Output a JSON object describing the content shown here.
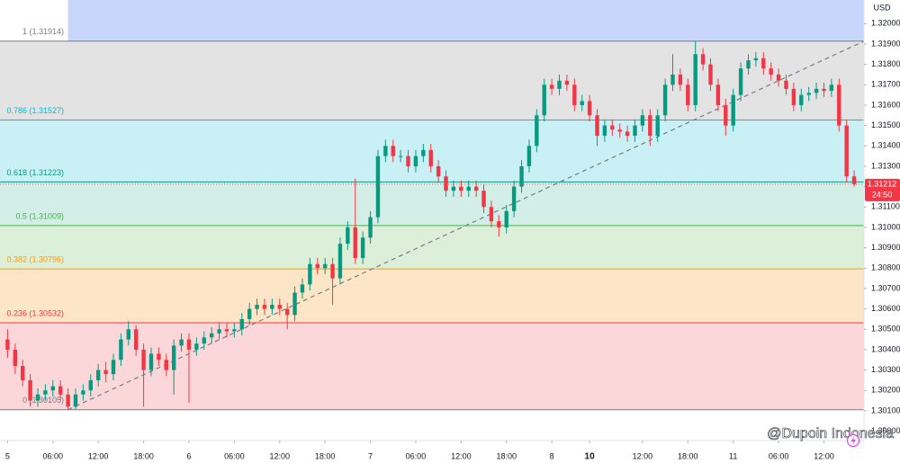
{
  "chart_data": {
    "type": "candlestick",
    "currency": "USD",
    "last_price": 1.31212,
    "countdown": "24:50",
    "watermark": "@Dupoin Indonesia",
    "up_color": "#089981",
    "down_color": "#f23645",
    "xlim": [
      -1,
      113.3
    ],
    "ylim": [
      1.29954,
      1.32116
    ],
    "xticks": [
      {
        "value": 0,
        "label": "5"
      },
      {
        "value": 6,
        "label": "06:00"
      },
      {
        "value": 12,
        "label": "12:00"
      },
      {
        "value": 18,
        "label": "18:00"
      },
      {
        "value": 24,
        "label": "6"
      },
      {
        "value": 30,
        "label": "06:00"
      },
      {
        "value": 36,
        "label": "12:00"
      },
      {
        "value": 42,
        "label": "18:00"
      },
      {
        "value": 48,
        "label": "7"
      },
      {
        "value": 54,
        "label": "06:00"
      },
      {
        "value": 60,
        "label": "12:00"
      },
      {
        "value": 66,
        "label": "18:00"
      },
      {
        "value": 72,
        "label": "8"
      },
      {
        "value": 77,
        "label": "10",
        "bold": true
      },
      {
        "value": 84,
        "label": "12:00"
      },
      {
        "value": 90,
        "label": "18:00"
      },
      {
        "value": 96,
        "label": "11"
      },
      {
        "value": 102,
        "label": "06:00"
      },
      {
        "value": 108,
        "label": "12:00"
      }
    ],
    "yticks": [
      {
        "value": 1.3,
        "label": "1.30000"
      },
      {
        "value": 1.301,
        "label": "1.30100"
      },
      {
        "value": 1.302,
        "label": "1.30200"
      },
      {
        "value": 1.303,
        "label": "1.30300"
      },
      {
        "value": 1.304,
        "label": "1.30400"
      },
      {
        "value": 1.305,
        "label": "1.30500"
      },
      {
        "value": 1.306,
        "label": "1.30600"
      },
      {
        "value": 1.307,
        "label": "1.30700"
      },
      {
        "value": 1.308,
        "label": "1.30800"
      },
      {
        "value": 1.309,
        "label": "1.30900"
      },
      {
        "value": 1.31,
        "label": "1.31000"
      },
      {
        "value": 1.311,
        "label": "1.31100"
      },
      {
        "value": 1.312,
        "label": "1.31200"
      },
      {
        "value": 1.313,
        "label": "1.31300"
      },
      {
        "value": 1.314,
        "label": "1.31400"
      },
      {
        "value": 1.315,
        "label": "1.31500"
      },
      {
        "value": 1.316,
        "label": "1.31600"
      },
      {
        "value": 1.317,
        "label": "1.31700"
      },
      {
        "value": 1.318,
        "label": "1.31800"
      },
      {
        "value": 1.319,
        "label": "1.31900"
      },
      {
        "value": 1.32,
        "label": "1.32000"
      }
    ],
    "fib_levels": [
      {
        "value": 1.31914,
        "label": "1 (1.31914)",
        "color": "#787b86",
        "fill": "#e3e3e3"
      },
      {
        "value": 1.31527,
        "label": "0.786 (1.31527)",
        "color": "#00bcd4",
        "fill": "#c9f1f5"
      },
      {
        "value": 1.31223,
        "label": "0.618 (1.31223)",
        "color": "#089981",
        "fill": "#d3eee6"
      },
      {
        "value": 1.31009,
        "label": "0.5 (1.31009)",
        "color": "#4caf50",
        "fill": "#dcefd9"
      },
      {
        "value": 1.30796,
        "label": "0.382 (1.30796)",
        "color": "#ff9800",
        "fill": "#fde6c8"
      },
      {
        "value": 1.30532,
        "label": "0.236 (1.30532)",
        "color": "#f23645",
        "fill": "#fbd7da"
      },
      {
        "value": 1.30105,
        "label": "0 (1.30105)",
        "color": "#787b86"
      }
    ],
    "open": [
      1.3045,
      1.304,
      1.3032,
      1.3025,
      1.3015,
      1.3018,
      1.302,
      1.3022,
      1.3018,
      1.3012,
      1.3018,
      1.302,
      1.3025,
      1.303,
      1.3028,
      1.3035,
      1.3045,
      1.305,
      1.304,
      1.303,
      1.3038,
      1.3035,
      1.303,
      1.3042,
      1.3045,
      1.304,
      1.3043,
      1.3046,
      1.3048,
      1.305,
      1.3049,
      1.305,
      1.3055,
      1.306,
      1.3062,
      1.306,
      1.3062,
      1.306,
      1.3057,
      1.3068,
      1.3072,
      1.3082,
      1.308,
      1.3082,
      1.3075,
      1.3092,
      1.31,
      1.3085,
      1.3095,
      1.3105,
      1.3135,
      1.314,
      1.3135,
      1.3135,
      1.313,
      1.3135,
      1.3138,
      1.313,
      1.3125,
      1.3118,
      1.312,
      1.3118,
      1.312,
      1.3118,
      1.311,
      1.3103,
      1.31,
      1.3108,
      1.312,
      1.313,
      1.314,
      1.3155,
      1.317,
      1.3168,
      1.3172,
      1.317,
      1.316,
      1.3162,
      1.3155,
      1.3145,
      1.315,
      1.3148,
      1.3147,
      1.3145,
      1.315,
      1.3155,
      1.3145,
      1.3155,
      1.317,
      1.3175,
      1.317,
      1.316,
      1.3185,
      1.318,
      1.317,
      1.316,
      1.315,
      1.3165,
      1.3178,
      1.3182,
      1.3183,
      1.3178,
      1.3175,
      1.3172,
      1.3168,
      1.316,
      1.3165,
      1.3166,
      1.3168,
      1.3167,
      1.317,
      1.315,
      1.3125
    ],
    "high": [
      1.305,
      1.3043,
      1.3035,
      1.3028,
      1.3021,
      1.3023,
      1.3025,
      1.3025,
      1.3021,
      1.3021,
      1.3023,
      1.3028,
      1.3033,
      1.3034,
      1.3038,
      1.3048,
      1.3054,
      1.3052,
      1.3043,
      1.3041,
      1.3041,
      1.3038,
      1.3045,
      1.3048,
      1.3048,
      1.3046,
      1.3049,
      1.3051,
      1.3053,
      1.3053,
      1.3053,
      1.3058,
      1.3063,
      1.3065,
      1.3065,
      1.3065,
      1.3065,
      1.3063,
      1.3071,
      1.3075,
      1.3085,
      1.3085,
      1.3085,
      1.3085,
      1.3095,
      1.3103,
      1.3124,
      1.3098,
      1.3108,
      1.3138,
      1.3143,
      1.3143,
      1.3138,
      1.3138,
      1.3138,
      1.3141,
      1.3141,
      1.3133,
      1.3128,
      1.3123,
      1.3123,
      1.3123,
      1.3123,
      1.3121,
      1.3113,
      1.3106,
      1.3111,
      1.3123,
      1.3133,
      1.3143,
      1.3158,
      1.3173,
      1.3173,
      1.3175,
      1.3175,
      1.3173,
      1.3165,
      1.3165,
      1.3158,
      1.3153,
      1.3153,
      1.3151,
      1.315,
      1.3153,
      1.3158,
      1.3158,
      1.3158,
      1.3173,
      1.3185,
      1.3178,
      1.3173,
      1.31914,
      1.3188,
      1.3183,
      1.3173,
      1.3163,
      1.3168,
      1.3181,
      1.3185,
      1.3186,
      1.3186,
      1.3181,
      1.3178,
      1.3175,
      1.3171,
      1.3168,
      1.3169,
      1.3171,
      1.3171,
      1.3173,
      1.3173,
      1.3153,
      1.3128
    ],
    "low": [
      1.3036,
      1.3028,
      1.3022,
      1.3012,
      1.3012,
      1.3015,
      1.3017,
      1.3015,
      1.30105,
      1.30108,
      1.3015,
      1.3017,
      1.3022,
      1.3024,
      1.3025,
      1.3032,
      1.3042,
      1.3037,
      1.3012,
      1.3027,
      1.3032,
      1.3027,
      1.3018,
      1.3039,
      1.3014,
      1.3037,
      1.304,
      1.3043,
      1.3045,
      1.3046,
      1.3046,
      1.3047,
      1.3052,
      1.3057,
      1.3057,
      1.3057,
      1.3057,
      1.305,
      1.3054,
      1.3065,
      1.3069,
      1.3077,
      1.3077,
      1.3062,
      1.3072,
      1.3089,
      1.3082,
      1.3082,
      1.3092,
      1.3102,
      1.3132,
      1.3132,
      1.3132,
      1.3127,
      1.3127,
      1.3132,
      1.3127,
      1.3122,
      1.3115,
      1.3115,
      1.3115,
      1.3115,
      1.3115,
      1.3107,
      1.31,
      1.30955,
      1.3097,
      1.3105,
      1.3117,
      1.3127,
      1.3137,
      1.3152,
      1.3165,
      1.3165,
      1.3167,
      1.3157,
      1.3157,
      1.3152,
      1.314,
      1.3142,
      1.3145,
      1.3144,
      1.3142,
      1.3142,
      1.3147,
      1.314,
      1.3142,
      1.3152,
      1.3167,
      1.3167,
      1.3157,
      1.3157,
      1.3177,
      1.3167,
      1.3157,
      1.3145,
      1.3147,
      1.3162,
      1.3175,
      1.3179,
      1.3175,
      1.3172,
      1.3169,
      1.3165,
      1.3157,
      1.3157,
      1.3162,
      1.3163,
      1.3164,
      1.3164,
      1.3147,
      1.3122,
      1.312
    ],
    "close": [
      1.304,
      1.3032,
      1.3025,
      1.3015,
      1.3018,
      1.302,
      1.3022,
      1.3018,
      1.3012,
      1.3018,
      1.302,
      1.3025,
      1.303,
      1.3028,
      1.3035,
      1.3045,
      1.305,
      1.304,
      1.303,
      1.3038,
      1.3035,
      1.303,
      1.3042,
      1.3045,
      1.304,
      1.3043,
      1.3046,
      1.3048,
      1.305,
      1.3049,
      1.305,
      1.3055,
      1.306,
      1.3062,
      1.306,
      1.3062,
      1.306,
      1.3057,
      1.3068,
      1.3072,
      1.3082,
      1.308,
      1.3082,
      1.3075,
      1.3092,
      1.31,
      1.3085,
      1.3095,
      1.3105,
      1.3135,
      1.314,
      1.3135,
      1.3135,
      1.313,
      1.3135,
      1.3138,
      1.313,
      1.3125,
      1.3118,
      1.312,
      1.3118,
      1.312,
      1.3118,
      1.311,
      1.3103,
      1.31,
      1.3108,
      1.312,
      1.313,
      1.314,
      1.3155,
      1.317,
      1.3168,
      1.3172,
      1.317,
      1.316,
      1.3162,
      1.3155,
      1.3145,
      1.315,
      1.3148,
      1.3147,
      1.3145,
      1.315,
      1.3155,
      1.3145,
      1.3155,
      1.317,
      1.3175,
      1.317,
      1.316,
      1.3185,
      1.318,
      1.317,
      1.316,
      1.315,
      1.3165,
      1.3178,
      1.3182,
      1.3183,
      1.3178,
      1.3175,
      1.3172,
      1.3168,
      1.316,
      1.3165,
      1.3166,
      1.3168,
      1.3167,
      1.317,
      1.315,
      1.3125,
      1.31212
    ]
  }
}
